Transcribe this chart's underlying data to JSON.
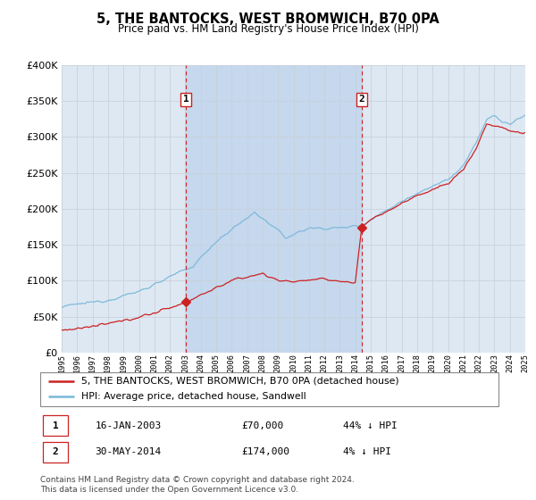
{
  "title": "5, THE BANTOCKS, WEST BROMWICH, B70 0PA",
  "subtitle": "Price paid vs. HM Land Registry's House Price Index (HPI)",
  "legend_line1": "5, THE BANTOCKS, WEST BROMWICH, B70 0PA (detached house)",
  "legend_line2": "HPI: Average price, detached house, Sandwell",
  "annotation1_date": "16-JAN-2003",
  "annotation1_price": "£70,000",
  "annotation1_hpi": "44% ↓ HPI",
  "annotation2_date": "30-MAY-2014",
  "annotation2_price": "£174,000",
  "annotation2_hpi": "4% ↓ HPI",
  "footer": "Contains HM Land Registry data © Crown copyright and database right 2024.\nThis data is licensed under the Open Government Licence v3.0.",
  "hpi_color": "#7ab8d9",
  "price_color": "#cc2222",
  "background_color": "#ffffff",
  "plot_bg_color": "#dde8f3",
  "grid_color": "#c8d0d8",
  "vline_color": "#cc2222",
  "shade_color": "#c5d8ed",
  "ylim": [
    0,
    400000
  ],
  "yticks": [
    0,
    50000,
    100000,
    150000,
    200000,
    250000,
    300000,
    350000,
    400000
  ],
  "year_start": 1995,
  "year_end": 2025,
  "sale1_year": 2003.04,
  "sale1_price": 70000,
  "sale2_year": 2014.41,
  "sale2_price": 174000
}
